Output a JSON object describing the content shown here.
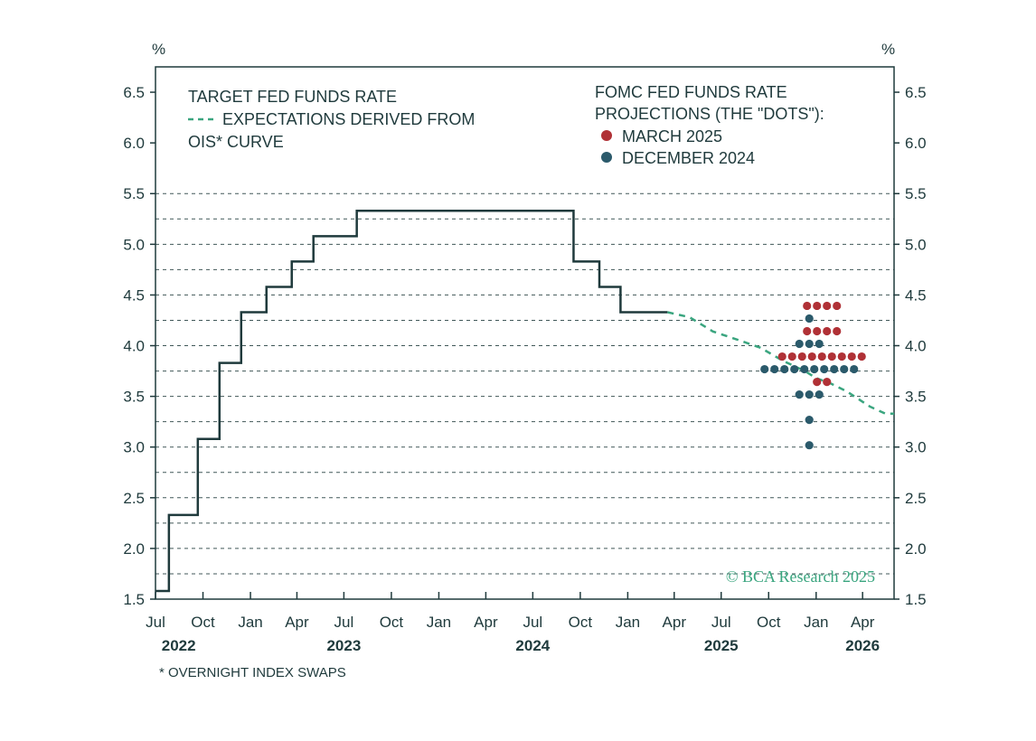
{
  "chart_data": {
    "type": "line",
    "y_unit_left": "%",
    "y_unit_right": "%",
    "ylim": [
      1.5,
      6.75
    ],
    "yticks": [
      1.5,
      2.0,
      2.5,
      3.0,
      3.5,
      4.0,
      4.5,
      5.0,
      5.5,
      6.0,
      6.5
    ],
    "ytick_labels": [
      "1.5",
      "2.0",
      "2.5",
      "3.0",
      "3.5",
      "4.0",
      "4.5",
      "5.0",
      "5.5",
      "6.0",
      "6.5"
    ],
    "grid": "horizontal dashed",
    "xlim": [
      "2022-07-01",
      "2026-06-01"
    ],
    "x_month_ticks": [
      {
        "date": "2022-07-01",
        "label": "Jul"
      },
      {
        "date": "2022-10-01",
        "label": "Oct"
      },
      {
        "date": "2023-01-01",
        "label": "Jan"
      },
      {
        "date": "2023-04-01",
        "label": "Apr"
      },
      {
        "date": "2023-07-01",
        "label": "Jul"
      },
      {
        "date": "2023-10-01",
        "label": "Oct"
      },
      {
        "date": "2024-01-01",
        "label": "Jan"
      },
      {
        "date": "2024-04-01",
        "label": "Apr"
      },
      {
        "date": "2024-07-01",
        "label": "Jul"
      },
      {
        "date": "2024-10-01",
        "label": "Oct"
      },
      {
        "date": "2025-01-01",
        "label": "Jan"
      },
      {
        "date": "2025-04-01",
        "label": "Apr"
      },
      {
        "date": "2025-07-01",
        "label": "Jul"
      },
      {
        "date": "2025-10-01",
        "label": "Oct"
      },
      {
        "date": "2026-01-01",
        "label": "Jan"
      },
      {
        "date": "2026-04-01",
        "label": "Apr"
      }
    ],
    "x_year_labels": [
      {
        "date": "2022-08-15",
        "label": "2022"
      },
      {
        "date": "2023-07-01",
        "label": "2023"
      },
      {
        "date": "2024-07-01",
        "label": "2024"
      },
      {
        "date": "2025-07-01",
        "label": "2025"
      },
      {
        "date": "2026-04-01",
        "label": "2026"
      }
    ],
    "series": [
      {
        "name": "TARGET FED FUNDS RATE",
        "style": "step",
        "color": "#1f3a3c",
        "points": [
          [
            "2022-07-01",
            1.58
          ],
          [
            "2022-07-27",
            2.33
          ],
          [
            "2022-09-21",
            3.08
          ],
          [
            "2022-11-02",
            3.83
          ],
          [
            "2022-12-14",
            4.33
          ],
          [
            "2023-02-01",
            4.58
          ],
          [
            "2023-03-22",
            4.83
          ],
          [
            "2023-05-03",
            5.08
          ],
          [
            "2023-07-26",
            5.33
          ],
          [
            "2024-09-18",
            4.83
          ],
          [
            "2024-11-07",
            4.58
          ],
          [
            "2024-12-18",
            4.33
          ],
          [
            "2025-03-19",
            4.33
          ]
        ]
      },
      {
        "name": "EXPECTATIONS DERIVED FROM OIS* CURVE",
        "style": "dashed",
        "color": "#3aa57f",
        "points": [
          [
            "2025-03-19",
            4.33
          ],
          [
            "2025-05-01",
            4.28
          ],
          [
            "2025-06-15",
            4.14
          ],
          [
            "2025-08-01",
            4.06
          ],
          [
            "2025-09-15",
            3.98
          ],
          [
            "2025-10-29",
            3.85
          ],
          [
            "2025-12-10",
            3.75
          ],
          [
            "2026-01-01",
            3.68
          ],
          [
            "2026-01-28",
            3.63
          ],
          [
            "2026-03-01",
            3.55
          ],
          [
            "2026-04-15",
            3.4
          ],
          [
            "2026-05-15",
            3.33
          ],
          [
            "2026-06-01",
            3.33
          ]
        ]
      }
    ],
    "dots": {
      "title_lines": [
        "FOMC FED FUNDS RATE",
        "PROJECTIONS (THE \"DOTS\"):"
      ],
      "groups": [
        {
          "name": "MARCH 2025",
          "color": "#b03136",
          "date": "2025-12-31",
          "levels": [
            {
              "rate": 4.375,
              "count": 4
            },
            {
              "rate": 4.125,
              "count": 4
            },
            {
              "rate": 3.875,
              "count": 9
            },
            {
              "rate": 3.625,
              "count": 2
            }
          ]
        },
        {
          "name": "DECEMBER 2024",
          "color": "#2b5a6b",
          "date": "2025-12-31",
          "levels": [
            {
              "rate": 4.375,
              "count": 1
            },
            {
              "rate": 4.125,
              "count": 3
            },
            {
              "rate": 3.875,
              "count": 10
            },
            {
              "rate": 3.625,
              "count": 3
            },
            {
              "rate": 3.375,
              "count": 1
            },
            {
              "rate": 3.125,
              "count": 1
            }
          ]
        }
      ]
    },
    "watermark": "© BCA Research 2025",
    "footnote": "* OVERNIGHT INDEX SWAPS"
  }
}
